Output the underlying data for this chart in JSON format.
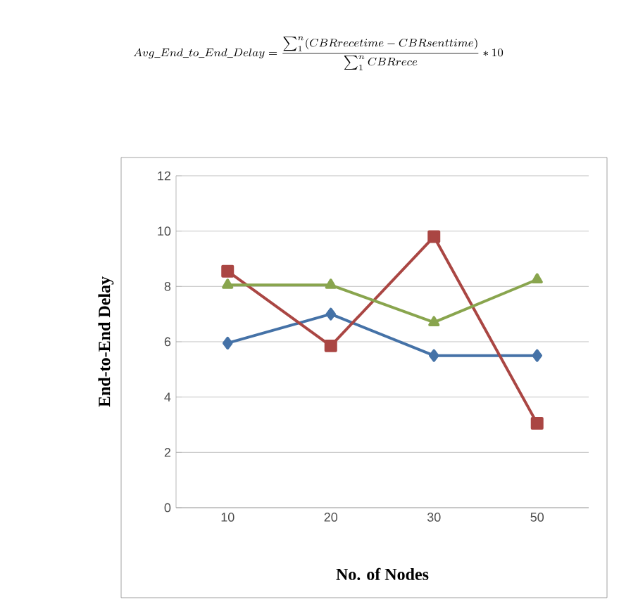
{
  "chart_data": {
    "type": "line",
    "ylabel": "End-to-End Delay",
    "xlabel": "No. of Nodes",
    "annotations": [
      "Avg\\_End\\_to\\_End\\_Delay=\\frac{\\sum_{1}^{n}(CBRrecetime-CBRsenttime)}{\\sum_{1}^{n}CBRrece}*10"
    ],
    "categories": [
      "10",
      "20",
      "30",
      "50"
    ],
    "series": [
      {
        "color": "#4572a7",
        "marker": "diamond",
        "values": [
          5.95,
          7.0,
          5.5,
          5.5
        ]
      },
      {
        "color": "#aa4643",
        "marker": "square",
        "values": [
          8.55,
          5.85,
          9.8,
          3.05
        ]
      },
      {
        "color": "#89a54e",
        "marker": "triangle",
        "values": [
          8.05,
          8.05,
          6.7,
          8.25
        ]
      }
    ],
    "ylim": [
      0,
      12
    ],
    "yticks": [
      0,
      2,
      4,
      6,
      8,
      10,
      12
    ],
    "grid": "y"
  }
}
